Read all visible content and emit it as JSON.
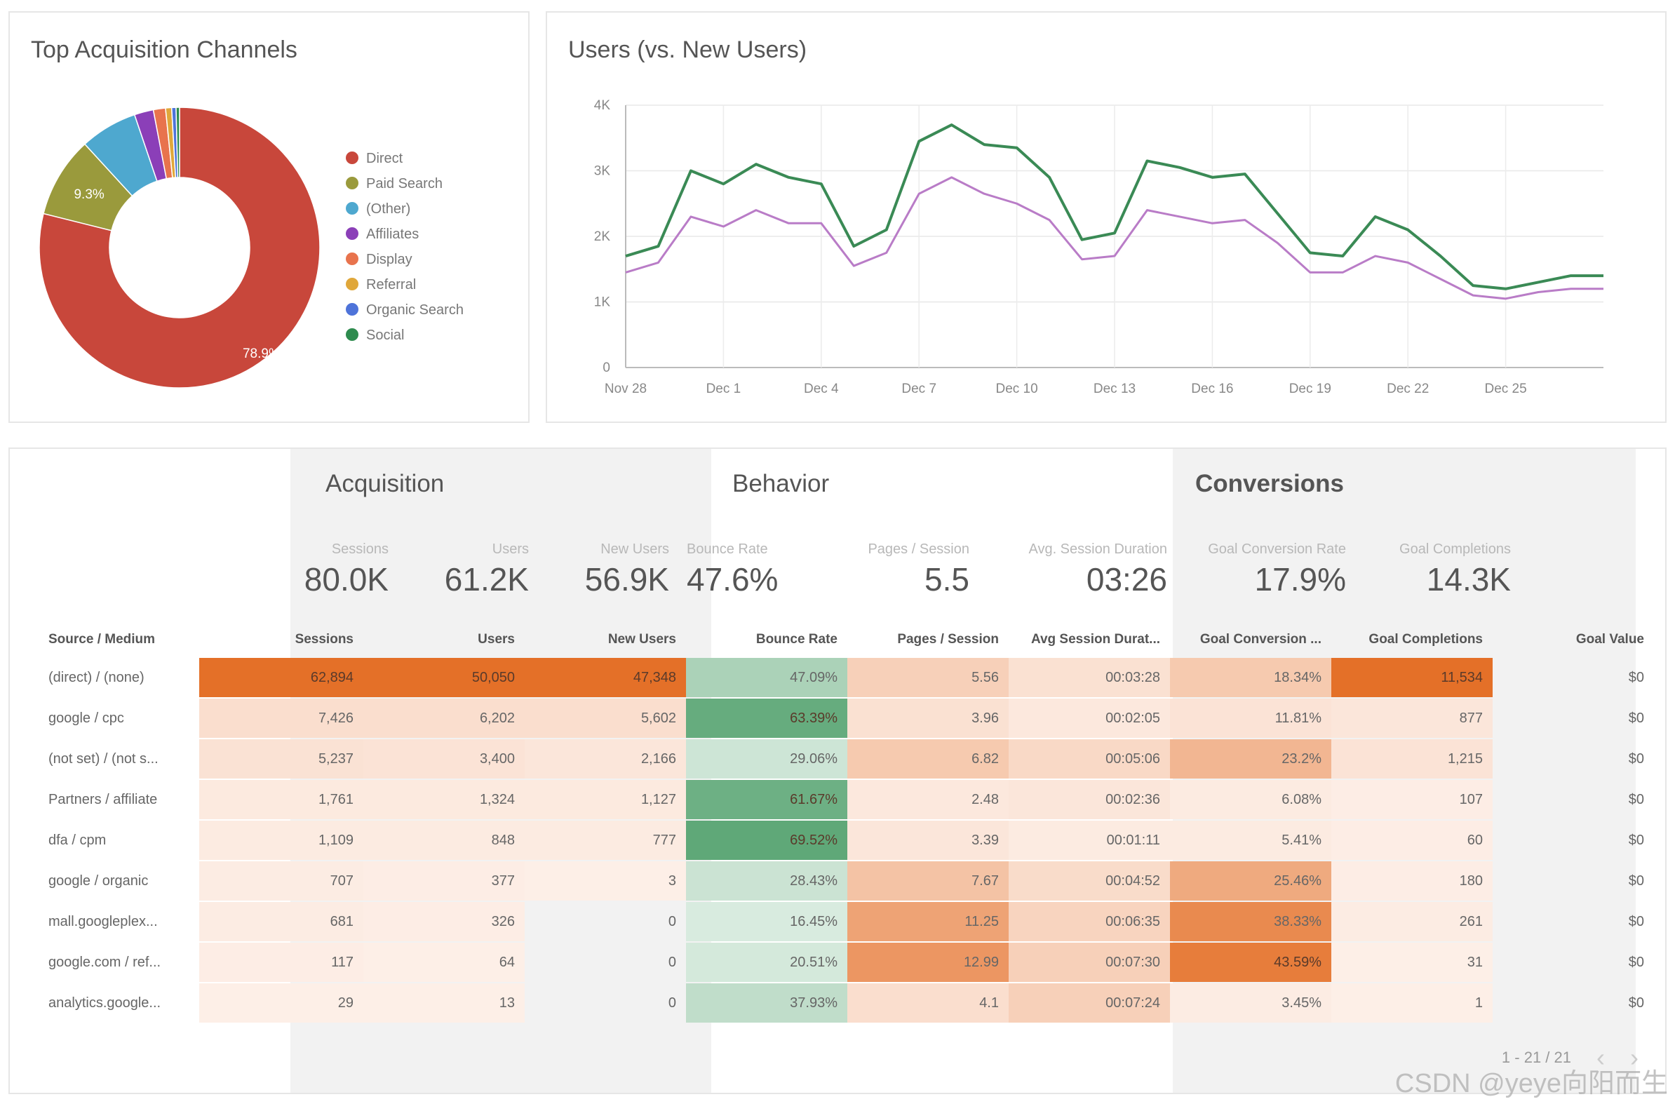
{
  "chart_data": [
    {
      "type": "pie",
      "title": "Top Acquisition Channels",
      "donut": true,
      "legend_position": "right",
      "slices": [
        {
          "label": "Direct",
          "value": 78.9,
          "color": "#c8473b",
          "data_label": "78.9%"
        },
        {
          "label": "Paid Search",
          "value": 9.3,
          "color": "#9a9a3c",
          "data_label": "9.3%"
        },
        {
          "label": "(Other)",
          "value": 6.6,
          "color": "#4ea8cf",
          "data_label": ""
        },
        {
          "label": "Affiliates",
          "value": 2.2,
          "color": "#8b3fb8",
          "data_label": ""
        },
        {
          "label": "Display",
          "value": 1.4,
          "color": "#e8734d",
          "data_label": ""
        },
        {
          "label": "Referral",
          "value": 0.7,
          "color": "#e0a73a",
          "data_label": ""
        },
        {
          "label": "Organic Search",
          "value": 0.5,
          "color": "#4e73d9",
          "data_label": ""
        },
        {
          "label": "Social",
          "value": 0.4,
          "color": "#2e8b4e",
          "data_label": ""
        }
      ]
    },
    {
      "type": "line",
      "title": "Users (vs. New Users)",
      "ylim": [
        0,
        4000
      ],
      "yticks": [
        0,
        1000,
        2000,
        3000,
        4000
      ],
      "ytick_labels": [
        "0",
        "1K",
        "2K",
        "3K",
        "4K"
      ],
      "x": [
        "Nov 28",
        "Nov 29",
        "Nov 30",
        "Dec 1",
        "Dec 2",
        "Dec 3",
        "Dec 4",
        "Dec 5",
        "Dec 6",
        "Dec 7",
        "Dec 8",
        "Dec 9",
        "Dec 10",
        "Dec 11",
        "Dec 12",
        "Dec 13",
        "Dec 14",
        "Dec 15",
        "Dec 16",
        "Dec 17",
        "Dec 18",
        "Dec 19",
        "Dec 20",
        "Dec 21",
        "Dec 22",
        "Dec 23",
        "Dec 24",
        "Dec 25",
        "Dec 26",
        "Dec 27",
        "Dec 28"
      ],
      "xtick_labels": [
        "Nov 28",
        "Dec 1",
        "Dec 4",
        "Dec 7",
        "Dec 10",
        "Dec 13",
        "Dec 16",
        "Dec 19",
        "Dec 22",
        "Dec 25"
      ],
      "grid": true,
      "series": [
        {
          "color": "#3a8a55",
          "values": [
            1700,
            1850,
            3000,
            2800,
            3100,
            2900,
            2800,
            1850,
            2100,
            3450,
            3700,
            3400,
            3350,
            2900,
            1950,
            2050,
            3150,
            3050,
            2900,
            2950,
            2350,
            1750,
            1700,
            2300,
            2100,
            1700,
            1250,
            1200,
            1300,
            1400,
            1400
          ]
        },
        {
          "color": "#b97cc7",
          "values": [
            1450,
            1600,
            2300,
            2150,
            2400,
            2200,
            2200,
            1550,
            1750,
            2650,
            2900,
            2650,
            2500,
            2250,
            1650,
            1700,
            2400,
            2300,
            2200,
            2250,
            1900,
            1450,
            1450,
            1700,
            1600,
            1350,
            1100,
            1050,
            1150,
            1200,
            1200
          ]
        }
      ]
    }
  ],
  "table": {
    "sections": [
      {
        "title": "Acquisition"
      },
      {
        "title": "Behavior"
      },
      {
        "title": "Conversions"
      }
    ],
    "totals": [
      {
        "label": "Sessions",
        "value": "80.0K"
      },
      {
        "label": "Users",
        "value": "61.2K"
      },
      {
        "label": "New Users",
        "value": "56.9K"
      },
      {
        "label": "Bounce Rate",
        "value": "47.6%"
      },
      {
        "label": "Pages / Session",
        "value": "5.5"
      },
      {
        "label": "Avg. Session Duration",
        "value": "03:26"
      },
      {
        "label": "Goal Conversion Rate",
        "value": "17.9%"
      },
      {
        "label": "Goal Completions",
        "value": "14.3K"
      }
    ],
    "columns": [
      "Source / Medium",
      "Sessions",
      "Users",
      "New Users",
      "Bounce Rate",
      "Pages / Session",
      "Avg Session Durat...",
      "Goal Conversion ...",
      "Goal Completions",
      "Goal Value"
    ],
    "rows": [
      {
        "cells": [
          "(direct) / (none)",
          "62,894",
          "50,050",
          "47,348",
          "47.09%",
          "5.56",
          "00:03:28",
          "18.34%",
          "11,534",
          "$0"
        ],
        "heat": [
          1,
          1,
          1,
          0.45,
          0.25,
          0.12,
          0.3,
          1
        ]
      },
      {
        "cells": [
          "google / cpc",
          "7,426",
          "6,202",
          "5,602",
          "63.39%",
          "3.96",
          "00:02:05",
          "11.81%",
          "877",
          "$0"
        ],
        "heat": [
          0.14,
          0.14,
          0.14,
          0.95,
          0.12,
          0.06,
          0.1,
          0.08
        ]
      },
      {
        "cells": [
          "(not set) / (not s...",
          "5,237",
          "3,400",
          "2,166",
          "29.06%",
          "6.82",
          "00:05:06",
          "23.2%",
          "1,215",
          "$0"
        ],
        "heat": [
          0.11,
          0.1,
          0.08,
          0.2,
          0.3,
          0.18,
          0.45,
          0.1
        ]
      },
      {
        "cells": [
          "Partners / affiliate",
          "1,761",
          "1,324",
          "1,127",
          "61.67%",
          "2.48",
          "00:02:36",
          "6.08%",
          "107",
          "$0"
        ],
        "heat": [
          0.05,
          0.05,
          0.05,
          0.9,
          0.06,
          0.08,
          0.04,
          0.02
        ]
      },
      {
        "cells": [
          "dfa / cpm",
          "1,109",
          "848",
          "777",
          "69.52%",
          "3.39",
          "00:01:11",
          "5.41%",
          "60",
          "$0"
        ],
        "heat": [
          0.04,
          0.04,
          0.04,
          1,
          0.08,
          0.04,
          0.04,
          0.02
        ]
      },
      {
        "cells": [
          "google / organic",
          "707",
          "377",
          "3",
          "28.43%",
          "7.67",
          "00:04:52",
          "25.46%",
          "180",
          "$0"
        ],
        "heat": [
          0.03,
          0.02,
          0.01,
          0.22,
          0.35,
          0.16,
          0.55,
          0.02
        ]
      },
      {
        "cells": [
          "mall.googleplex...",
          "681",
          "326",
          "0",
          "16.45%",
          "11.25",
          "00:06:35",
          "38.33%",
          "261",
          "$0"
        ],
        "heat": [
          0.03,
          0.02,
          0,
          0.12,
          0.6,
          0.22,
          0.8,
          0.03
        ]
      },
      {
        "cells": [
          "google.com / ref...",
          "117",
          "64",
          "0",
          "20.51%",
          "12.99",
          "00:07:30",
          "43.59%",
          "31",
          "$0"
        ],
        "heat": [
          0.02,
          0.01,
          0,
          0.15,
          0.7,
          0.25,
          0.9,
          0.01
        ]
      },
      {
        "cells": [
          "analytics.google...",
          "29",
          "13",
          "0",
          "37.93%",
          "4.1",
          "00:07:24",
          "3.45%",
          "1",
          "$0"
        ],
        "heat": [
          0.01,
          0.01,
          0,
          0.3,
          0.14,
          0.25,
          0.03,
          0.01
        ]
      }
    ],
    "pager": {
      "text": "1 - 21 / 21",
      "prev": "‹",
      "next": "›"
    }
  },
  "watermark": "CSDN @yeye向阳而生"
}
